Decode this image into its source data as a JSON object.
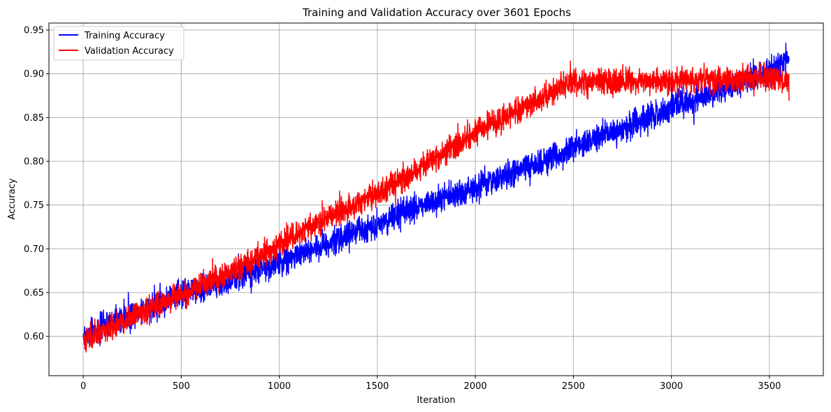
{
  "chart_data": {
    "type": "line",
    "title": "Training and Validation Accuracy over 3601 Epochs",
    "xlabel": "Iteration",
    "ylabel": "Accuracy",
    "xlim": [
      -175,
      3775
    ],
    "ylim": [
      0.555,
      0.958
    ],
    "xticks": [
      0,
      500,
      1000,
      1500,
      2000,
      2500,
      3000,
      3500
    ],
    "yticks": [
      0.6,
      0.65,
      0.7,
      0.75,
      0.8,
      0.85,
      0.9,
      0.95
    ],
    "grid": true,
    "legend_position": "top-left",
    "n_points": 3601,
    "series": [
      {
        "name": "Training Accuracy",
        "color": "#0000ff",
        "noise_amplitude": 0.012,
        "trend_x": [
          0,
          250,
          500,
          750,
          1000,
          1250,
          1500,
          1750,
          2000,
          2250,
          2500,
          2750,
          3000,
          3250,
          3500,
          3600
        ],
        "trend_y": [
          0.6,
          0.626,
          0.648,
          0.664,
          0.685,
          0.707,
          0.728,
          0.752,
          0.77,
          0.791,
          0.815,
          0.838,
          0.862,
          0.88,
          0.903,
          0.918
        ]
      },
      {
        "name": "Validation Accuracy",
        "color": "#ff0000",
        "noise_amplitude": 0.011,
        "trend_x": [
          0,
          250,
          500,
          750,
          1000,
          1250,
          1500,
          1750,
          2000,
          2250,
          2500,
          2750,
          3000,
          3250,
          3500,
          3600
        ],
        "trend_y": [
          0.595,
          0.622,
          0.648,
          0.673,
          0.705,
          0.736,
          0.763,
          0.797,
          0.832,
          0.862,
          0.891,
          0.891,
          0.892,
          0.893,
          0.896,
          0.89
        ]
      }
    ]
  }
}
